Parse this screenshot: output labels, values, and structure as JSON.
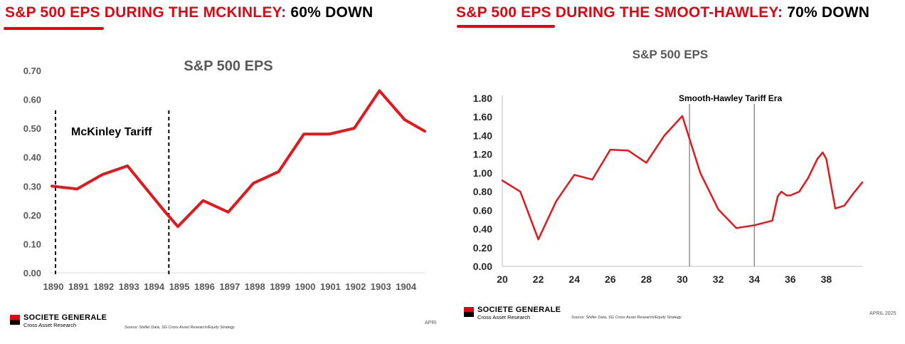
{
  "left": {
    "headline": {
      "red": "S&P 500 EPS DURING THE MCKINLEY:",
      "black": " 60% DOWN"
    },
    "footer": {
      "logo_name": "SOCIETE GENERALE",
      "logo_sub": "Cross Asset Research",
      "source": "Source: Shiller Data, SG Cross Asset Research/Equity Strategy",
      "date": "APRI"
    }
  },
  "right": {
    "headline": {
      "red": "S&P 500 EPS DURING THE SMOOT-HAWLEY:",
      "black": " 70% DOWN"
    },
    "footer": {
      "logo_name": "SOCIETE GENERALE",
      "logo_sub": "Cross Asset Research",
      "source": "Source: Shiller Data, SG Cross Asset Research/Equity Strategy",
      "date": "APRIL 2025"
    }
  },
  "colors": {
    "accent": "#e20613",
    "line": "#e3171c",
    "axis_text": "#595959"
  },
  "chart_data": [
    {
      "type": "line",
      "title": "S&P 500 EPS",
      "xlabel": "",
      "ylabel": "",
      "ylim": [
        0,
        0.7
      ],
      "y_ticks": [
        "0.00",
        "0.10",
        "0.20",
        "0.30",
        "0.40",
        "0.50",
        "0.60",
        "0.70"
      ],
      "x_ticks": [
        "1890",
        "1891",
        "1892",
        "1893",
        "1894",
        "1895",
        "1896",
        "1897",
        "1898",
        "1899",
        "1900",
        "1901",
        "1902",
        "1903",
        "1904"
      ],
      "grid": false,
      "annotation": "McKinley Tariff",
      "shaded_period": [
        1890,
        1894.5
      ],
      "series": [
        {
          "x": [
            1890,
            1891,
            1892,
            1893,
            1894.5,
            1895,
            1896,
            1897,
            1898,
            1899,
            1900,
            1901,
            1902,
            1903,
            1904,
            1904.8
          ],
          "y": [
            0.3,
            0.29,
            0.34,
            0.37,
            0.21,
            0.16,
            0.25,
            0.21,
            0.31,
            0.35,
            0.48,
            0.48,
            0.5,
            0.63,
            0.53,
            0.49
          ]
        }
      ]
    },
    {
      "type": "line",
      "title": "S&P 500 EPS",
      "xlabel": "",
      "ylabel": "",
      "ylim": [
        0,
        1.8
      ],
      "y_ticks": [
        "0.00",
        "0.20",
        "0.40",
        "0.60",
        "0.80",
        "1.00",
        "1.20",
        "1.40",
        "1.60",
        "1.80"
      ],
      "x_ticks": [
        "20",
        "22",
        "24",
        "26",
        "28",
        "30",
        "32",
        "34",
        "36",
        "38"
      ],
      "xlim": [
        1920,
        1940
      ],
      "grid": false,
      "annotation": "Smooth-Hawley Tariff Era",
      "shaded_period": [
        1930.4,
        1934
      ],
      "series": [
        {
          "x": [
            1920,
            1921,
            1922,
            1923,
            1924,
            1925,
            1926,
            1927,
            1928,
            1929,
            1930,
            1931,
            1932,
            1933,
            1934,
            1935,
            1935.3,
            1935.5,
            1935.8,
            1936,
            1936.5,
            1937,
            1937.5,
            1937.8,
            1938,
            1938.5,
            1939,
            1939.5,
            1940
          ],
          "y": [
            0.92,
            0.8,
            0.29,
            0.7,
            0.98,
            0.93,
            1.25,
            1.24,
            1.11,
            1.4,
            1.61,
            1.0,
            0.61,
            0.41,
            0.44,
            0.49,
            0.75,
            0.8,
            0.76,
            0.76,
            0.8,
            0.95,
            1.15,
            1.22,
            1.15,
            0.62,
            0.65,
            0.78,
            0.9
          ]
        }
      ]
    }
  ]
}
